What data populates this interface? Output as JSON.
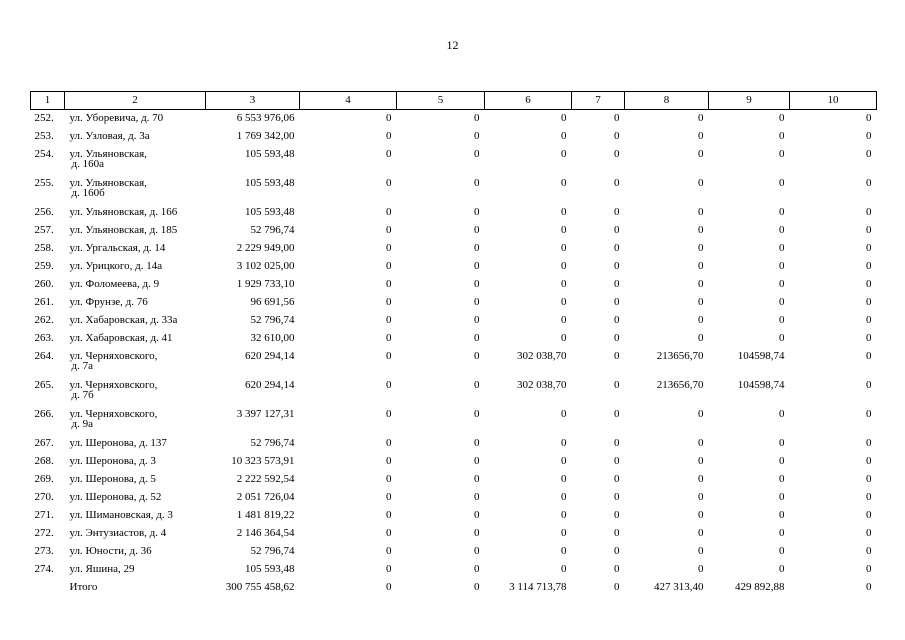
{
  "page_number": "12",
  "columns": [
    "1",
    "2",
    "3",
    "4",
    "5",
    "6",
    "7",
    "8",
    "9",
    "10"
  ],
  "rows": [
    {
      "n": "252.",
      "a": [
        "ул. Уборевича, д. 70"
      ],
      "v": [
        "6 553 976,06",
        "0",
        "0",
        "0",
        "0",
        "0",
        "0",
        "0"
      ]
    },
    {
      "n": "253.",
      "a": [
        "ул. Узловая, д. 3а"
      ],
      "v": [
        "1 769 342,00",
        "0",
        "0",
        "0",
        "0",
        "0",
        "0",
        "0"
      ]
    },
    {
      "n": "254.",
      "a": [
        "ул. Ульяновская,",
        "д. 160а"
      ],
      "v": [
        "105 593,48",
        "0",
        "0",
        "0",
        "0",
        "0",
        "0",
        "0"
      ]
    },
    {
      "n": "255.",
      "a": [
        "ул. Ульяновская,",
        "д. 160б"
      ],
      "v": [
        "105 593,48",
        "0",
        "0",
        "0",
        "0",
        "0",
        "0",
        "0"
      ]
    },
    {
      "n": "256.",
      "a": [
        "ул. Ульяновская, д. 166"
      ],
      "v": [
        "105 593,48",
        "0",
        "0",
        "0",
        "0",
        "0",
        "0",
        "0"
      ]
    },
    {
      "n": "257.",
      "a": [
        "ул. Ульяновская, д. 185"
      ],
      "v": [
        "52 796,74",
        "0",
        "0",
        "0",
        "0",
        "0",
        "0",
        "0"
      ]
    },
    {
      "n": "258.",
      "a": [
        "ул. Ургальская, д. 14"
      ],
      "v": [
        "2 229 949,00",
        "0",
        "0",
        "0",
        "0",
        "0",
        "0",
        "0"
      ]
    },
    {
      "n": "259.",
      "a": [
        "ул. Урицкого, д. 14а"
      ],
      "v": [
        "3 102 025,00",
        "0",
        "0",
        "0",
        "0",
        "0",
        "0",
        "0"
      ]
    },
    {
      "n": "260.",
      "a": [
        "ул. Фоломеева, д. 9"
      ],
      "v": [
        "1 929 733,10",
        "0",
        "0",
        "0",
        "0",
        "0",
        "0",
        "0"
      ]
    },
    {
      "n": "261.",
      "a": [
        "ул. Фрунзе, д. 76"
      ],
      "v": [
        "96 691,56",
        "0",
        "0",
        "0",
        "0",
        "0",
        "0",
        "0"
      ]
    },
    {
      "n": "262.",
      "a": [
        "ул. Хабаровская, д. 33а"
      ],
      "v": [
        "52 796,74",
        "0",
        "0",
        "0",
        "0",
        "0",
        "0",
        "0"
      ]
    },
    {
      "n": "263.",
      "a": [
        "ул. Хабаровская, д. 41"
      ],
      "v": [
        "32 610,00",
        "0",
        "0",
        "0",
        "0",
        "0",
        "0",
        "0"
      ]
    },
    {
      "n": "264.",
      "a": [
        "ул. Черняховского,",
        "д. 7а"
      ],
      "v": [
        "620 294,14",
        "0",
        "0",
        "302 038,70",
        "0",
        "213656,70",
        "104598,74",
        "0"
      ]
    },
    {
      "n": "265.",
      "a": [
        "ул. Черняховского,",
        "д. 7б"
      ],
      "v": [
        "620 294,14",
        "0",
        "0",
        "302 038,70",
        "0",
        "213656,70",
        "104598,74",
        "0"
      ]
    },
    {
      "n": "266.",
      "a": [
        "ул. Черняховского,",
        "д. 9а"
      ],
      "v": [
        "3 397 127,31",
        "0",
        "0",
        "0",
        "0",
        "0",
        "0",
        "0"
      ]
    },
    {
      "n": "267.",
      "a": [
        "ул. Шеронова, д. 137"
      ],
      "v": [
        "52 796,74",
        "0",
        "0",
        "0",
        "0",
        "0",
        "0",
        "0"
      ]
    },
    {
      "n": "268.",
      "a": [
        "ул. Шеронова, д. 3"
      ],
      "v": [
        "10 323 573,91",
        "0",
        "0",
        "0",
        "0",
        "0",
        "0",
        "0"
      ]
    },
    {
      "n": "269.",
      "a": [
        "ул. Шеронова, д. 5"
      ],
      "v": [
        "2 222 592,54",
        "0",
        "0",
        "0",
        "0",
        "0",
        "0",
        "0"
      ]
    },
    {
      "n": "270.",
      "a": [
        "ул. Шеронова, д. 52"
      ],
      "v": [
        "2 051 726,04",
        "0",
        "0",
        "0",
        "0",
        "0",
        "0",
        "0"
      ]
    },
    {
      "n": "271.",
      "a": [
        "ул. Шимановская, д. 3"
      ],
      "v": [
        "1 481 819,22",
        "0",
        "0",
        "0",
        "0",
        "0",
        "0",
        "0"
      ]
    },
    {
      "n": "272.",
      "a": [
        "ул. Энтузиастов, д. 4"
      ],
      "v": [
        "2 146 364,54",
        "0",
        "0",
        "0",
        "0",
        "0",
        "0",
        "0"
      ]
    },
    {
      "n": "273.",
      "a": [
        "ул. Юности, д. 36"
      ],
      "v": [
        "52 796,74",
        "0",
        "0",
        "0",
        "0",
        "0",
        "0",
        "0"
      ]
    },
    {
      "n": "274.",
      "a": [
        "ул. Яшина, 29"
      ],
      "v": [
        "105 593,48",
        "0",
        "0",
        "0",
        "0",
        "0",
        "0",
        "0"
      ]
    }
  ],
  "total": {
    "label": "Итого",
    "v": [
      "300 755 458,62",
      "0",
      "0",
      "3 114 713,78",
      "0",
      "427 313,40",
      "429 892,88",
      "0"
    ]
  }
}
